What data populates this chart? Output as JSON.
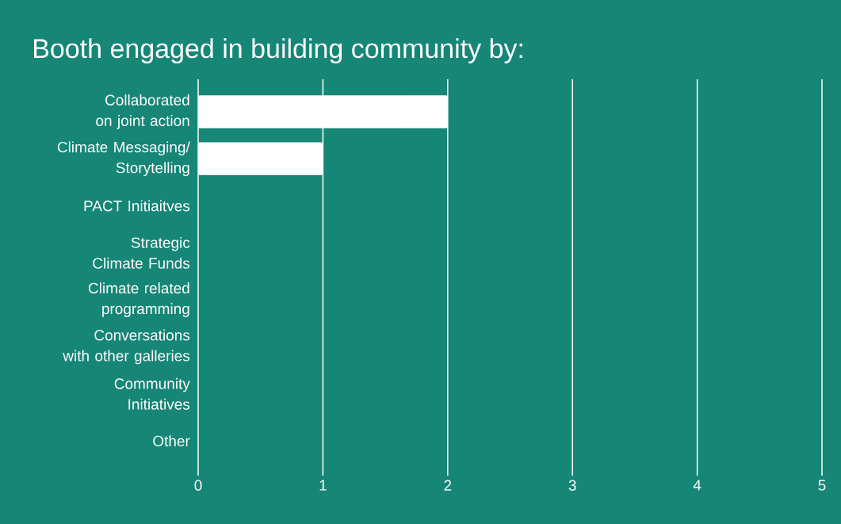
{
  "chart_data": {
    "type": "bar",
    "orientation": "horizontal",
    "title": "Booth engaged in building community by:",
    "categories": [
      "Collaborated on joint action",
      "Climate Messaging/ Storytelling",
      "PACT Initiaitves",
      "Strategic Climate Funds",
      "Climate related programming",
      "Conversations with other galleries",
      "Community Initiatives",
      "Other"
    ],
    "values": [
      2,
      1,
      0,
      0,
      0,
      0,
      0,
      0
    ],
    "color": "#ffffff",
    "xlim": [
      0,
      5
    ],
    "xticks": [
      0,
      1,
      2,
      3,
      4,
      5
    ],
    "grid": "x"
  }
}
